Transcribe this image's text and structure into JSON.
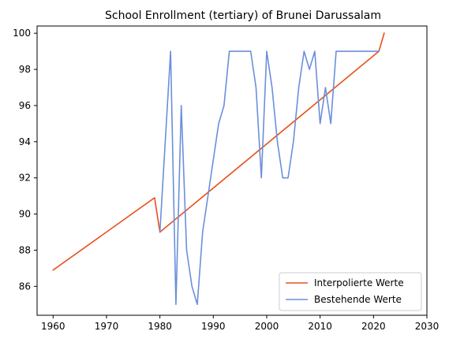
{
  "chart_data": {
    "type": "line",
    "title": "School Enrollment (tertiary) of Brunei Darussalam",
    "xlabel": "",
    "ylabel": "",
    "xlim": [
      1957,
      2030
    ],
    "ylim": [
      84.4,
      100.4
    ],
    "x_ticks": [
      1960,
      1970,
      1980,
      1990,
      2000,
      2010,
      2020,
      2030
    ],
    "y_ticks": [
      86,
      88,
      90,
      92,
      94,
      96,
      98,
      100
    ],
    "grid": false,
    "legend_position": "bottom-right",
    "series": [
      {
        "name": "Interpolierte Werte",
        "color": "#e8501a",
        "x": [
          1960,
          1979,
          1980,
          2021,
          2022
        ],
        "y": [
          86.9,
          90.9,
          89.0,
          99.0,
          100.0
        ]
      },
      {
        "name": "Bestehende Werte",
        "color": "#6b8fdc",
        "x": [
          1980,
          1982,
          1983,
          1984,
          1985,
          1986,
          1987,
          1988,
          1989,
          1990,
          1991,
          1992,
          1993,
          1994,
          1995,
          1996,
          1997,
          1998,
          1999,
          2000,
          2001,
          2002,
          2003,
          2004,
          2005,
          2006,
          2007,
          2008,
          2009,
          2010,
          2011,
          2012,
          2013,
          2014,
          2015,
          2016,
          2017,
          2018,
          2019,
          2020,
          2021
        ],
        "y": [
          89.0,
          99.0,
          85.0,
          96.0,
          88.0,
          86.0,
          85.0,
          89.0,
          91.0,
          93.0,
          95.0,
          96.0,
          99.0,
          99.0,
          99.0,
          99.0,
          99.0,
          97.0,
          92.0,
          99.0,
          97.0,
          94.0,
          92.0,
          92.0,
          94.0,
          97.0,
          99.0,
          98.0,
          99.0,
          95.0,
          97.0,
          95.0,
          99.0,
          99.0,
          99.0,
          99.0,
          99.0,
          99.0,
          99.0,
          99.0,
          99.0
        ]
      }
    ]
  }
}
